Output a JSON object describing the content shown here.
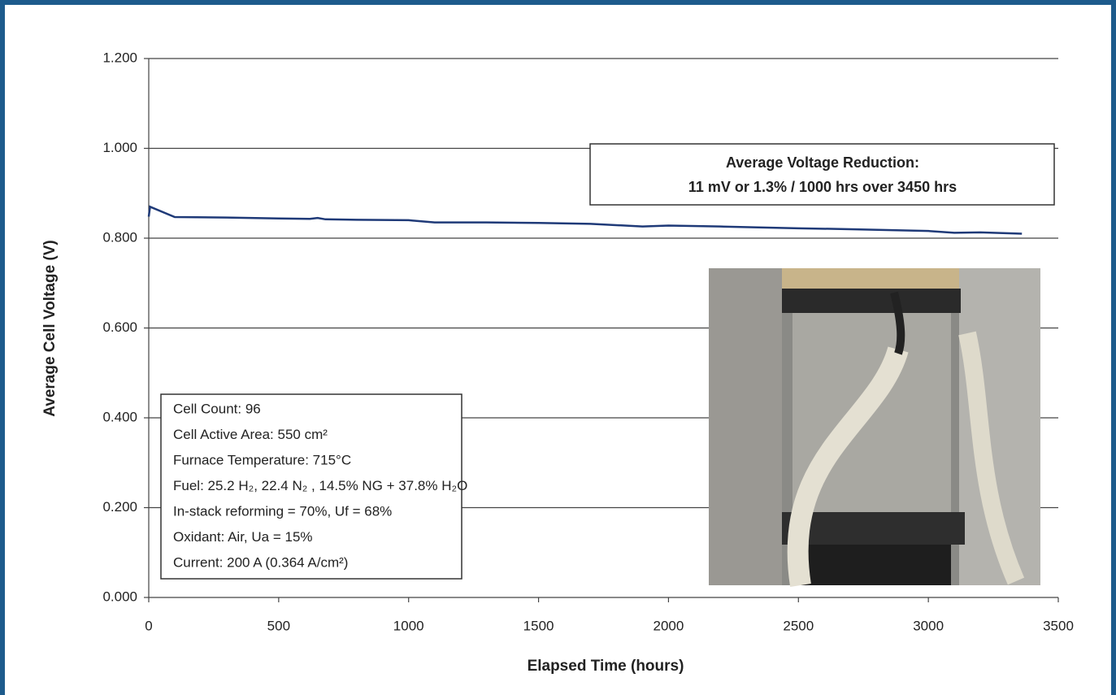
{
  "chart_data": {
    "type": "line",
    "xlabel": "Elapsed Time (hours)",
    "ylabel": "Average Cell Voltage (V)",
    "x": [
      0,
      5,
      100,
      300,
      500,
      620,
      650,
      680,
      800,
      1000,
      1100,
      1300,
      1500,
      1700,
      1900,
      2000,
      2200,
      2500,
      2700,
      3000,
      3100,
      3200,
      3360
    ],
    "values": [
      0.848,
      0.87,
      0.847,
      0.846,
      0.844,
      0.843,
      0.845,
      0.842,
      0.841,
      0.84,
      0.835,
      0.835,
      0.834,
      0.832,
      0.826,
      0.828,
      0.826,
      0.822,
      0.82,
      0.816,
      0.812,
      0.813,
      0.81
    ],
    "color": "#1f3a78",
    "xlim": [
      0,
      3500
    ],
    "xticks": [
      0,
      500,
      1000,
      1500,
      2000,
      2500,
      3000,
      3500
    ],
    "ylim": [
      0,
      1.2
    ],
    "yticks": [
      {
        "value": 0,
        "label": "0.000"
      },
      {
        "value": 0.2,
        "label": "0.200"
      },
      {
        "value": 0.4,
        "label": "0.400"
      },
      {
        "value": 0.6,
        "label": "0.600"
      },
      {
        "value": 0.8,
        "label": "0.800"
      },
      {
        "value": 1.0,
        "label": "1.000"
      },
      {
        "value": 1.2,
        "label": "1.200"
      }
    ],
    "grid": true,
    "annotations": {
      "reduction": [
        "Average Voltage Reduction:",
        "11 mV or 1.3% / 1000 hrs  over 3450 hrs"
      ],
      "conditions": [
        "Cell Count:  96",
        "Cell Active Area:  550 cm²",
        "Furnace Temperature:  715°C",
        "Fuel:  25.2 H₂, 22.4 N₂ , 14.5% NG + 37.8% H₂O",
        "In-stack reforming = 70%, Uf = 68%",
        "Oxidant:  Air, Ua = 15%",
        "Current:  200 A (0.364 A/cm²)"
      ]
    }
  }
}
